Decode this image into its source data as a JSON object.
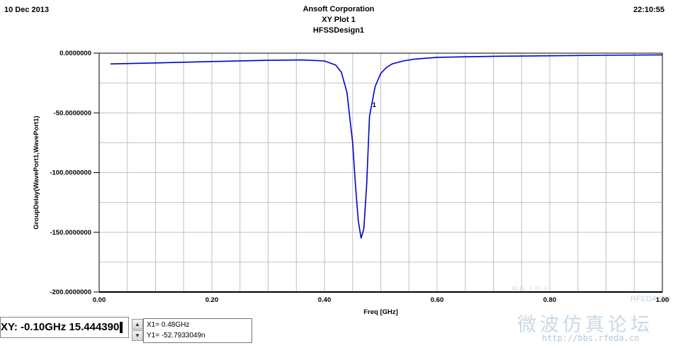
{
  "header": {
    "date": "10 Dec 2013",
    "company": "Ansoft Corporation",
    "plot_title": "XY Plot 1",
    "design": "HFSSDesign1",
    "time": "22:10:55"
  },
  "chart_data": {
    "type": "line",
    "title": "XY Plot 1",
    "xlabel": "Freq [GHz]",
    "ylabel": "GroupDelay(WavePort1,WavePort1)",
    "xlim": [
      0.0,
      1.0
    ],
    "ylim": [
      -200.0,
      0.0
    ],
    "x_ticks": [
      "0.00",
      "0.20",
      "0.40",
      "0.60",
      "0.80",
      "1.00"
    ],
    "x_tick_values": [
      0.0,
      0.2,
      0.4,
      0.6,
      0.8,
      1.0
    ],
    "y_ticks": [
      "0.0000000",
      "-50.0000000",
      "-100.0000000",
      "-150.0000000",
      "-200.0000000"
    ],
    "y_tick_values": [
      0,
      -50,
      -100,
      -150,
      -200
    ],
    "grid": true,
    "line_color": "#0000cc",
    "series": [
      {
        "x": [
          0.02,
          0.1,
          0.2,
          0.3,
          0.36,
          0.4,
          0.42,
          0.43,
          0.44,
          0.45,
          0.455,
          0.46,
          0.465,
          0.47,
          0.475,
          0.48,
          0.49,
          0.5,
          0.51,
          0.52,
          0.54,
          0.56,
          0.6,
          0.7,
          0.8,
          0.9,
          1.0
        ],
        "values": [
          -9,
          -8.2,
          -7,
          -6,
          -5.7,
          -6.5,
          -10,
          -16,
          -33,
          -75,
          -110,
          -140,
          -155,
          -147,
          -110,
          -52.8,
          -28,
          -17,
          -12,
          -9,
          -6.5,
          -5,
          -3.5,
          -2.6,
          -2.2,
          -1.8,
          -1.4
        ]
      }
    ],
    "marker": {
      "label": "1",
      "x": 0.48,
      "y": -52.79
    }
  },
  "marker_readout": {
    "x_text": "X1= 0.48GHz",
    "y_text": "Y1= -52.7933049n"
  },
  "coordinate_readout": "XY: -0.10GHz 15.444390",
  "watermark": {
    "text": "微波仿真论坛",
    "url": "http://bbs.rfeda.cn",
    "brand": "RFEDA.CN",
    "cn_small": "网在上论天"
  }
}
